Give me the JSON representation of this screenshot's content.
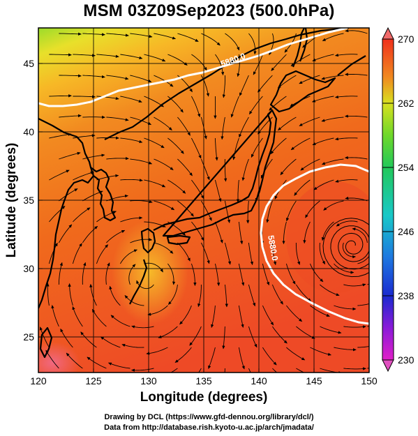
{
  "title": "MSM 03Z09Sep2023 (500.0hPa)",
  "map": {
    "xlabel": "Longitude (degrees)",
    "ylabel": "Latitude  (degrees)",
    "xlim": [
      120,
      150
    ],
    "ylim": [
      22.4,
      47.6
    ],
    "xticks": [
      {
        "value": 120,
        "label": "120"
      },
      {
        "value": 125,
        "label": "125"
      },
      {
        "value": 130,
        "label": "130"
      },
      {
        "value": 135,
        "label": "135"
      },
      {
        "value": 140,
        "label": "140"
      },
      {
        "value": 145,
        "label": "145"
      },
      {
        "value": 150,
        "label": "150"
      }
    ],
    "yticks": [
      {
        "value": 25,
        "label": "25"
      },
      {
        "value": 30,
        "label": "30"
      },
      {
        "value": 35,
        "label": "35"
      },
      {
        "value": 40,
        "label": "40"
      },
      {
        "value": 45,
        "label": "45"
      }
    ],
    "contours": [
      {
        "label": "5880.0",
        "color": "#ffffff"
      },
      {
        "label": "5880.0",
        "color": "#ffffff"
      }
    ]
  },
  "colorbar": {
    "min": 230,
    "max": 270,
    "ticks": [
      {
        "value": 270,
        "label": "270"
      },
      {
        "value": 262,
        "label": "262"
      },
      {
        "value": 254,
        "label": "254"
      },
      {
        "value": 246,
        "label": "246"
      },
      {
        "value": 238,
        "label": "238"
      },
      {
        "value": 230,
        "label": "230"
      }
    ]
  },
  "credits": {
    "line1": "Drawing by DCL (https://www.gfd-dennou.org/library/dcl/)",
    "line2": "Data from http://database.rish.kyoto-u.ac.jp/arch/jmadata/"
  }
}
